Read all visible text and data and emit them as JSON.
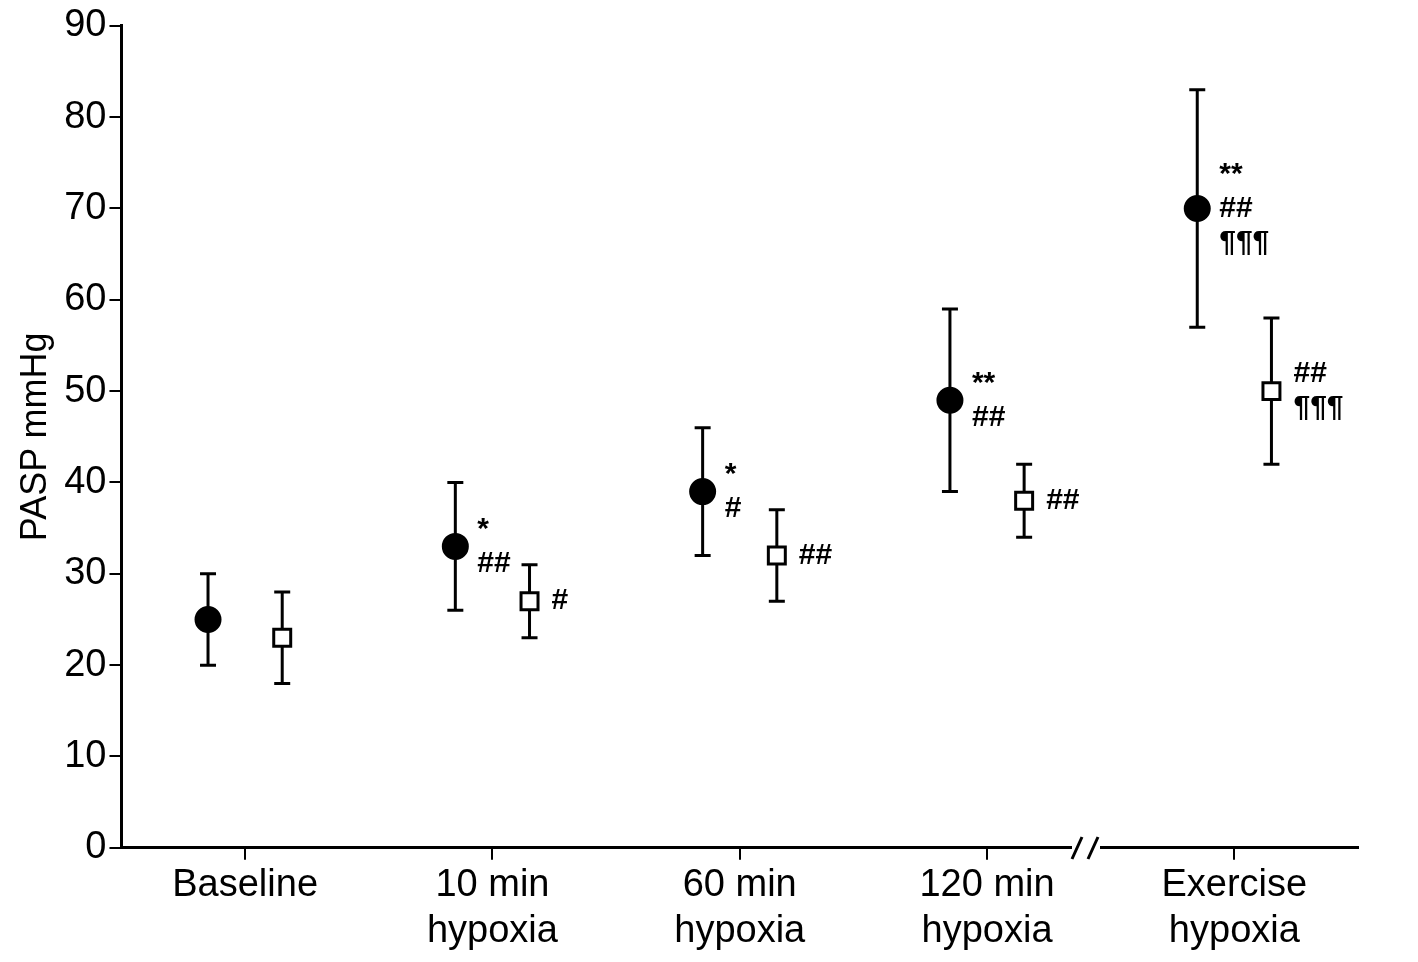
{
  "chart_data": {
    "type": "scatter",
    "ylabel": "PASP mmHg",
    "categories": [
      "Baseline",
      "10 min hypoxia",
      "60 min hypoxia",
      "120 min hypoxia",
      "Exercise hypoxia"
    ],
    "series": [
      {
        "color": "#000000",
        "marker": "circle",
        "values": [
          25,
          33,
          39,
          49,
          70
        ],
        "errors": [
          5,
          7,
          7,
          10,
          13
        ],
        "value_labels": [
          null,
          "*\n##",
          "*\n#",
          "**\n##",
          "**\n##\n¶¶¶"
        ]
      },
      {
        "color": "#000000",
        "marker": "square",
        "values": [
          23,
          27,
          32,
          38,
          50
        ],
        "errors": [
          5,
          4,
          5,
          4,
          8
        ],
        "value_labels": [
          null,
          "#",
          "##",
          "##",
          "##\n¶¶¶"
        ]
      }
    ],
    "ylim": [
      0,
      90
    ],
    "yticks": [
      0,
      10,
      20,
      30,
      40,
      50,
      60,
      70,
      80,
      90
    ],
    "grid": false,
    "legend": false
  }
}
